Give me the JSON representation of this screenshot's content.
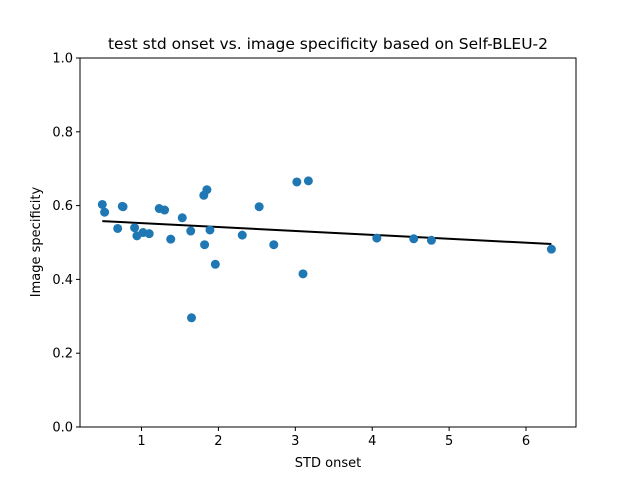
{
  "chart_data": {
    "type": "scatter",
    "title": "test std onset vs. image specificity based on Self-BLEU-2",
    "xlabel": "STD onset",
    "ylabel": "Image specificity",
    "xlim": [
      0.2,
      6.65
    ],
    "ylim": [
      0.0,
      1.0
    ],
    "xticks": [
      1,
      2,
      3,
      4,
      5,
      6
    ],
    "yticks": [
      0.0,
      0.2,
      0.4,
      0.6,
      0.8,
      1.0
    ],
    "xtick_labels": [
      "1",
      "2",
      "3",
      "4",
      "5",
      "6"
    ],
    "ytick_labels": [
      "0.0",
      "0.2",
      "0.4",
      "0.6",
      "0.8",
      "1.0"
    ],
    "grid": false,
    "point_color": "#1f77b4",
    "fit_line_color": "#000000",
    "points": [
      {
        "x": 0.49,
        "y": 0.603
      },
      {
        "x": 0.52,
        "y": 0.582
      },
      {
        "x": 0.69,
        "y": 0.538
      },
      {
        "x": 0.75,
        "y": 0.598
      },
      {
        "x": 0.76,
        "y": 0.597
      },
      {
        "x": 0.91,
        "y": 0.54
      },
      {
        "x": 0.94,
        "y": 0.518
      },
      {
        "x": 1.02,
        "y": 0.527
      },
      {
        "x": 1.1,
        "y": 0.524
      },
      {
        "x": 1.23,
        "y": 0.592
      },
      {
        "x": 1.3,
        "y": 0.588
      },
      {
        "x": 1.38,
        "y": 0.509
      },
      {
        "x": 1.53,
        "y": 0.567
      },
      {
        "x": 1.64,
        "y": 0.531
      },
      {
        "x": 1.65,
        "y": 0.296
      },
      {
        "x": 1.81,
        "y": 0.628
      },
      {
        "x": 1.82,
        "y": 0.494
      },
      {
        "x": 1.85,
        "y": 0.643
      },
      {
        "x": 1.89,
        "y": 0.534
      },
      {
        "x": 1.96,
        "y": 0.441
      },
      {
        "x": 2.31,
        "y": 0.52
      },
      {
        "x": 2.53,
        "y": 0.597
      },
      {
        "x": 2.72,
        "y": 0.494
      },
      {
        "x": 3.02,
        "y": 0.664
      },
      {
        "x": 3.1,
        "y": 0.415
      },
      {
        "x": 3.17,
        "y": 0.667
      },
      {
        "x": 4.06,
        "y": 0.512
      },
      {
        "x": 4.54,
        "y": 0.51
      },
      {
        "x": 4.77,
        "y": 0.506
      },
      {
        "x": 6.33,
        "y": 0.482
      }
    ],
    "fit_line": {
      "x": [
        0.49,
        6.33
      ],
      "y": [
        0.558,
        0.496
      ]
    }
  }
}
